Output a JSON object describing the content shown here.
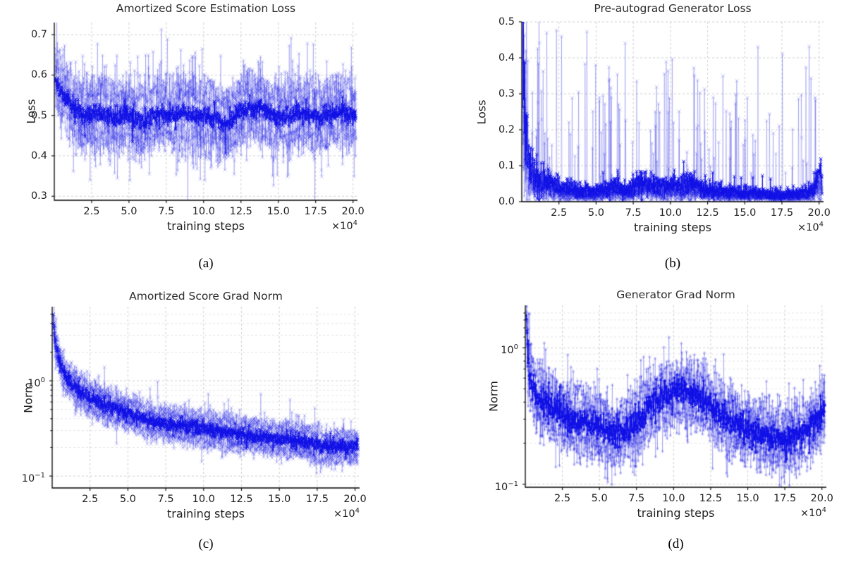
{
  "figure": {
    "background": "#ffffff",
    "series_color_dark": "#0f0fe6",
    "series_color_light": "#1414e0",
    "light_alpha": 0.24,
    "grid_major_color": "#c9c9c9",
    "grid_minor_color": "#dedede",
    "spine_color": "#000000",
    "text_color": "#262626"
  },
  "chart_data": [
    {
      "id": "a",
      "caption": "(a)",
      "type": "line",
      "marker": "x",
      "title": "Amortized Score Estimation Loss",
      "xlabel": "training steps",
      "ylabel": "Loss",
      "xoffset_label": "×10^4",
      "yscale": "linear",
      "xlim": [
        0,
        20.3
      ],
      "x_start": 0.07,
      "x_end": 20.2,
      "ylim": [
        0.29,
        0.73
      ],
      "xticks": {
        "values": [
          2.5,
          5,
          7.5,
          10,
          12.5,
          15,
          17.5,
          20
        ],
        "labels": [
          "2.5",
          "5.0",
          "7.5",
          "10.0",
          "12.5",
          "15.0",
          "17.5",
          "20.0"
        ]
      },
      "yticks": {
        "values": [
          0.3,
          0.4,
          0.5,
          0.6,
          0.7
        ],
        "labels": [
          "0.3",
          "0.4",
          "0.5",
          "0.6",
          "0.7"
        ]
      },
      "yminor": [],
      "trend": [
        [
          0.07,
          0.6
        ],
        [
          0.2,
          0.575
        ],
        [
          0.4,
          0.56
        ],
        [
          0.7,
          0.545
        ],
        [
          1.0,
          0.53
        ],
        [
          1.5,
          0.515
        ],
        [
          2.0,
          0.502
        ],
        [
          3.0,
          0.505
        ],
        [
          4.0,
          0.497
        ],
        [
          5.0,
          0.503
        ],
        [
          5.5,
          0.49
        ],
        [
          6.0,
          0.482
        ],
        [
          6.5,
          0.498
        ],
        [
          7.0,
          0.505
        ],
        [
          8.0,
          0.495
        ],
        [
          8.5,
          0.508
        ],
        [
          9.0,
          0.5
        ],
        [
          10.0,
          0.5
        ],
        [
          10.8,
          0.492
        ],
        [
          11.3,
          0.478
        ],
        [
          11.8,
          0.482
        ],
        [
          12.4,
          0.51
        ],
        [
          13.0,
          0.515
        ],
        [
          14.0,
          0.518
        ],
        [
          14.6,
          0.503
        ],
        [
          15.2,
          0.5
        ],
        [
          16.0,
          0.505
        ],
        [
          17.0,
          0.508
        ],
        [
          17.6,
          0.495
        ],
        [
          18.3,
          0.502
        ],
        [
          19.0,
          0.51
        ],
        [
          19.5,
          0.507
        ],
        [
          20.2,
          0.5
        ]
      ],
      "dark": {
        "n": 1000,
        "seed": 11,
        "bias": 0,
        "sigma": 0.012,
        "spike_p": 0.012,
        "spike_min": 0.02,
        "spike_max": 0.05,
        "spike_sign": 0
      },
      "light": {
        "n": 650,
        "runs": [
          {
            "bias": 0.062,
            "sigma": 0.027,
            "spike_p": 0.03,
            "spike_min": 0.04,
            "spike_max": 0.12,
            "spike_sign": 1,
            "seed": 101
          },
          {
            "bias": 0.035,
            "sigma": 0.03,
            "spike_p": 0.025,
            "spike_min": 0.04,
            "spike_max": 0.14,
            "spike_sign": 0,
            "seed": 102
          },
          {
            "bias": 0.0,
            "sigma": 0.034,
            "spike_p": 0.03,
            "spike_min": 0.05,
            "spike_max": 0.15,
            "spike_sign": 0,
            "seed": 103
          },
          {
            "bias": -0.04,
            "sigma": 0.03,
            "spike_p": 0.03,
            "spike_min": 0.04,
            "spike_max": 0.12,
            "spike_sign": -1,
            "seed": 104
          },
          {
            "bias": -0.058,
            "sigma": 0.026,
            "spike_p": 0.025,
            "spike_min": 0.04,
            "spike_max": 0.1,
            "spike_sign": -1,
            "seed": 105
          }
        ]
      }
    },
    {
      "id": "b",
      "caption": "(b)",
      "type": "line",
      "marker": "x",
      "title": "Pre-autograd Generator Loss",
      "xlabel": "training steps",
      "ylabel": "Loss",
      "xoffset_label": "×10^4",
      "yscale": "linear",
      "noise_relative": true,
      "clamp_min": 0.004,
      "early_spike_boost": {
        "xmax": 1.5,
        "mult": 3
      },
      "xlim": [
        0,
        20.3
      ],
      "x_start": 0.07,
      "x_end": 20.2,
      "ylim": [
        0.0,
        0.5
      ],
      "xticks": {
        "values": [
          2.5,
          5,
          7.5,
          10,
          12.5,
          15,
          17.5,
          20
        ],
        "labels": [
          "2.5",
          "5.0",
          "7.5",
          "10.0",
          "12.5",
          "15.0",
          "17.5",
          "20.0"
        ]
      },
      "yticks": {
        "values": [
          0.0,
          0.1,
          0.2,
          0.3,
          0.4,
          0.5
        ],
        "labels": [
          "0.0",
          "0.1",
          "0.2",
          "0.3",
          "0.4",
          "0.5"
        ]
      },
      "yminor": [],
      "trend": [
        [
          0.07,
          0.46
        ],
        [
          0.12,
          0.4
        ],
        [
          0.18,
          0.33
        ],
        [
          0.25,
          0.26
        ],
        [
          0.35,
          0.19
        ],
        [
          0.45,
          0.14
        ],
        [
          0.55,
          0.115
        ],
        [
          0.7,
          0.095
        ],
        [
          0.9,
          0.08
        ],
        [
          1.1,
          0.07
        ],
        [
          1.35,
          0.058
        ],
        [
          1.6,
          0.068
        ],
        [
          1.85,
          0.072
        ],
        [
          2.1,
          0.05
        ],
        [
          2.4,
          0.04
        ],
        [
          2.8,
          0.038
        ],
        [
          3.2,
          0.042
        ],
        [
          3.6,
          0.035
        ],
        [
          4.0,
          0.03
        ],
        [
          4.4,
          0.036
        ],
        [
          4.8,
          0.03
        ],
        [
          5.2,
          0.032
        ],
        [
          5.6,
          0.035
        ],
        [
          6.0,
          0.045
        ],
        [
          6.3,
          0.05
        ],
        [
          6.7,
          0.04
        ],
        [
          7.1,
          0.034
        ],
        [
          7.5,
          0.04
        ],
        [
          7.9,
          0.06
        ],
        [
          8.2,
          0.062
        ],
        [
          8.6,
          0.048
        ],
        [
          9.0,
          0.044
        ],
        [
          9.4,
          0.05
        ],
        [
          9.8,
          0.04
        ],
        [
          10.2,
          0.044
        ],
        [
          10.7,
          0.05
        ],
        [
          11.1,
          0.06
        ],
        [
          11.4,
          0.06
        ],
        [
          11.8,
          0.046
        ],
        [
          12.3,
          0.038
        ],
        [
          12.8,
          0.034
        ],
        [
          13.4,
          0.032
        ],
        [
          14.0,
          0.03
        ],
        [
          14.6,
          0.027
        ],
        [
          15.2,
          0.026
        ],
        [
          15.8,
          0.026
        ],
        [
          16.4,
          0.023
        ],
        [
          17.0,
          0.021
        ],
        [
          17.6,
          0.021
        ],
        [
          18.2,
          0.022
        ],
        [
          18.8,
          0.025
        ],
        [
          19.3,
          0.027
        ],
        [
          19.7,
          0.045
        ],
        [
          20.0,
          0.07
        ],
        [
          20.2,
          0.08
        ]
      ],
      "dark": {
        "n": 1000,
        "seed": 21,
        "scale": 1,
        "sigma": 0.35,
        "spike_p": 0.02,
        "spike_min": 0.02,
        "spike_max": 0.06,
        "spike_sign": 1
      },
      "light": {
        "n": 650,
        "runs": [
          {
            "scale": 0.7,
            "sigma": 0.3,
            "spike_p": 0.04,
            "spike_min": 0.05,
            "spike_max": 0.42,
            "spike_sign": 1,
            "seed": 201
          },
          {
            "scale": 0.55,
            "sigma": 0.3,
            "spike_p": 0.035,
            "spike_min": 0.05,
            "spike_max": 0.35,
            "spike_sign": 1,
            "seed": 202
          },
          {
            "scale": 0.85,
            "sigma": 0.28,
            "spike_p": 0.04,
            "spike_min": 0.05,
            "spike_max": 0.45,
            "spike_sign": 1,
            "seed": 203
          },
          {
            "scale": 0.5,
            "sigma": 0.3,
            "spike_p": 0.03,
            "spike_min": 0.05,
            "spike_max": 0.3,
            "spike_sign": 1,
            "seed": 204
          },
          {
            "scale": 0.62,
            "sigma": 0.3,
            "spike_p": 0.035,
            "spike_min": 0.05,
            "spike_max": 0.38,
            "spike_sign": 1,
            "seed": 205
          }
        ]
      }
    },
    {
      "id": "c",
      "caption": "(c)",
      "type": "line",
      "marker": "x",
      "title": "Amortized Score Grad Norm",
      "xlabel": "training steps",
      "ylabel": "Norm",
      "xoffset_label": "×10^4",
      "yscale": "log",
      "xlim": [
        0,
        20.3
      ],
      "x_start": 0.07,
      "x_end": 20.2,
      "ylim": [
        0.075,
        6.0
      ],
      "xticks": {
        "values": [
          2.5,
          5,
          7.5,
          10,
          12.5,
          15,
          17.5,
          20
        ],
        "labels": [
          "2.5",
          "5.0",
          "7.5",
          "10.0",
          "12.5",
          "15.0",
          "17.5",
          "20.0"
        ]
      },
      "yticks": {
        "values": [
          0.1,
          1
        ],
        "labels": [
          "10^−1",
          "10^0"
        ]
      },
      "yminor": [
        0.2,
        0.3,
        0.4,
        0.5,
        0.6,
        0.7,
        0.8,
        0.9,
        2,
        3,
        4,
        5
      ],
      "trend": [
        [
          0.07,
          4.8
        ],
        [
          0.12,
          3.6
        ],
        [
          0.2,
          2.7
        ],
        [
          0.3,
          2.15
        ],
        [
          0.5,
          1.6
        ],
        [
          0.7,
          1.28
        ],
        [
          1.0,
          1.06
        ],
        [
          1.3,
          0.93
        ],
        [
          1.6,
          0.83
        ],
        [
          2.0,
          0.75
        ],
        [
          2.5,
          0.66
        ],
        [
          3.0,
          0.61
        ],
        [
          3.5,
          0.56
        ],
        [
          4.0,
          0.52
        ],
        [
          4.5,
          0.485
        ],
        [
          5.0,
          0.465
        ],
        [
          5.5,
          0.435
        ],
        [
          6.0,
          0.405
        ],
        [
          6.5,
          0.385
        ],
        [
          7.0,
          0.37
        ],
        [
          7.5,
          0.355
        ],
        [
          8.0,
          0.345
        ],
        [
          8.7,
          0.335
        ],
        [
          9.4,
          0.325
        ],
        [
          10.0,
          0.312
        ],
        [
          10.7,
          0.3
        ],
        [
          11.4,
          0.293
        ],
        [
          12.0,
          0.283
        ],
        [
          12.7,
          0.272
        ],
        [
          13.4,
          0.263
        ],
        [
          14.0,
          0.256
        ],
        [
          14.7,
          0.249
        ],
        [
          15.4,
          0.242
        ],
        [
          16.0,
          0.235
        ],
        [
          16.7,
          0.228
        ],
        [
          17.3,
          0.218
        ],
        [
          17.8,
          0.205
        ],
        [
          18.4,
          0.2
        ],
        [
          19.0,
          0.208
        ],
        [
          19.6,
          0.204
        ],
        [
          20.2,
          0.198
        ]
      ],
      "dark": {
        "n": 1000,
        "seed": 31,
        "bias": 0,
        "sigma": 0.04,
        "spike_p": 0.012,
        "spike_min": 0.04,
        "spike_max": 0.1,
        "spike_sign": 0
      },
      "light": {
        "n": 650,
        "runs": [
          {
            "bias": 0.13,
            "sigma": 0.055,
            "spike_p": 0.025,
            "spike_min": 0.08,
            "spike_max": 0.25,
            "spike_sign": 1,
            "seed": 301
          },
          {
            "bias": 0.07,
            "sigma": 0.06,
            "spike_p": 0.02,
            "spike_min": 0.08,
            "spike_max": 0.22,
            "spike_sign": 1,
            "seed": 302
          },
          {
            "bias": 0.0,
            "sigma": 0.06,
            "spike_p": 0.02,
            "spike_min": 0.08,
            "spike_max": 0.2,
            "spike_sign": 0,
            "seed": 303
          },
          {
            "bias": -0.08,
            "sigma": 0.055,
            "spike_p": 0.02,
            "spike_min": 0.08,
            "spike_max": 0.2,
            "spike_sign": -1,
            "seed": 304
          },
          {
            "bias": -0.13,
            "sigma": 0.05,
            "spike_p": 0.02,
            "spike_min": 0.06,
            "spike_max": 0.18,
            "spike_sign": -1,
            "seed": 305
          }
        ]
      }
    },
    {
      "id": "d",
      "caption": "(d)",
      "type": "line",
      "marker": "asterisk",
      "title": "Generator Grad Norm",
      "xlabel": "training steps",
      "ylabel": "Norm",
      "xoffset_label": "×10^4",
      "yscale": "log",
      "xlim": [
        0,
        20.3
      ],
      "x_start": 0.07,
      "x_end": 20.2,
      "ylim": [
        0.095,
        2.05
      ],
      "xticks": {
        "values": [
          2.5,
          5,
          7.5,
          10,
          12.5,
          15,
          17.5,
          20
        ],
        "labels": [
          "2.5",
          "5.0",
          "7.5",
          "10.0",
          "12.5",
          "15.0",
          "17.5",
          "20.0"
        ]
      },
      "yticks": {
        "values": [
          0.1,
          1
        ],
        "labels": [
          "10^−1",
          "10^0"
        ]
      },
      "yminor": [
        0.2,
        0.3,
        0.4,
        0.5,
        0.6,
        0.7,
        0.8,
        0.9,
        1.2,
        1.4,
        1.6,
        1.8
      ],
      "trend": [
        [
          0.07,
          1.85
        ],
        [
          0.12,
          1.35
        ],
        [
          0.2,
          0.9
        ],
        [
          0.3,
          0.65
        ],
        [
          0.5,
          0.52
        ],
        [
          0.8,
          0.45
        ],
        [
          1.0,
          0.43
        ],
        [
          1.5,
          0.39
        ],
        [
          2.0,
          0.355
        ],
        [
          2.5,
          0.335
        ],
        [
          3.0,
          0.305
        ],
        [
          3.5,
          0.285
        ],
        [
          4.0,
          0.29
        ],
        [
          4.5,
          0.272
        ],
        [
          5.0,
          0.262
        ],
        [
          5.5,
          0.247
        ],
        [
          6.0,
          0.237
        ],
        [
          6.5,
          0.243
        ],
        [
          7.0,
          0.262
        ],
        [
          7.5,
          0.283
        ],
        [
          8.0,
          0.33
        ],
        [
          8.5,
          0.38
        ],
        [
          9.0,
          0.42
        ],
        [
          9.5,
          0.45
        ],
        [
          10.0,
          0.47
        ],
        [
          10.5,
          0.482
        ],
        [
          11.0,
          0.472
        ],
        [
          11.5,
          0.443
        ],
        [
          12.0,
          0.41
        ],
        [
          12.5,
          0.372
        ],
        [
          13.0,
          0.332
        ],
        [
          13.5,
          0.302
        ],
        [
          14.0,
          0.282
        ],
        [
          14.5,
          0.262
        ],
        [
          15.0,
          0.252
        ],
        [
          15.5,
          0.242
        ],
        [
          16.0,
          0.232
        ],
        [
          16.5,
          0.222
        ],
        [
          17.0,
          0.22
        ],
        [
          17.5,
          0.216
        ],
        [
          18.0,
          0.222
        ],
        [
          18.5,
          0.232
        ],
        [
          19.0,
          0.252
        ],
        [
          19.5,
          0.282
        ],
        [
          20.2,
          0.36
        ]
      ],
      "dark": {
        "n": 1000,
        "seed": 41,
        "bias": 0,
        "sigma": 0.055,
        "spike_p": 0.015,
        "spike_min": 0.05,
        "spike_max": 0.12,
        "spike_sign": 0
      },
      "light": {
        "n": 650,
        "runs": [
          {
            "bias": 0.15,
            "sigma": 0.085,
            "spike_p": 0.03,
            "spike_min": 0.1,
            "spike_max": 0.3,
            "spike_sign": 1,
            "seed": 401
          },
          {
            "bias": 0.08,
            "sigma": 0.09,
            "spike_p": 0.025,
            "spike_min": 0.1,
            "spike_max": 0.28,
            "spike_sign": 1,
            "seed": 402
          },
          {
            "bias": 0.0,
            "sigma": 0.09,
            "spike_p": 0.025,
            "spike_min": 0.1,
            "spike_max": 0.25,
            "spike_sign": 0,
            "seed": 403
          },
          {
            "bias": -0.1,
            "sigma": 0.085,
            "spike_p": 0.025,
            "spike_min": 0.08,
            "spike_max": 0.25,
            "spike_sign": -1,
            "seed": 404
          },
          {
            "bias": -0.16,
            "sigma": 0.08,
            "spike_p": 0.025,
            "spike_min": 0.08,
            "spike_max": 0.22,
            "spike_sign": -1,
            "seed": 405
          }
        ]
      }
    }
  ]
}
